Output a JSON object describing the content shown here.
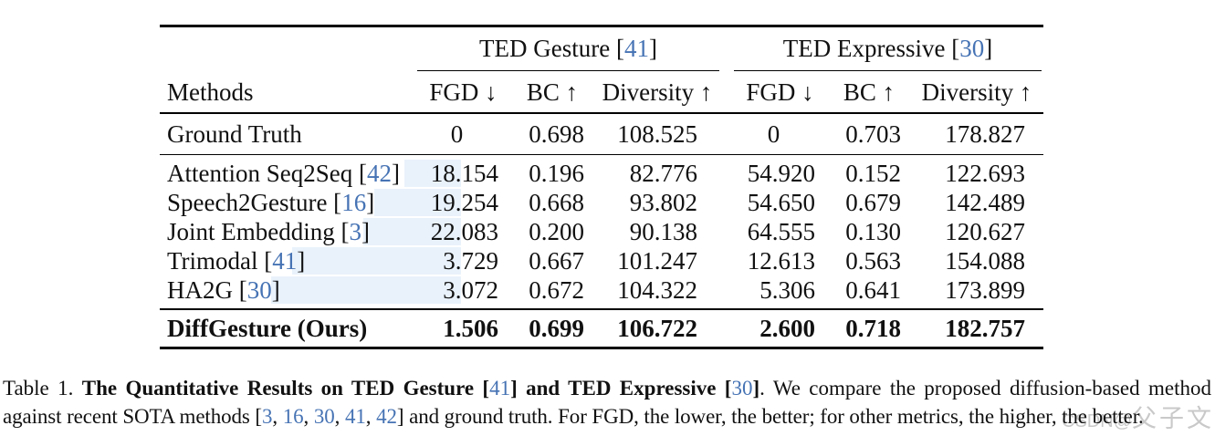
{
  "colors": {
    "citation_blue": "#4673b4",
    "row_highlight_blue": "#e9f2fb",
    "watermark_gray": "#c9c9c9"
  },
  "table": {
    "group_headers": [
      {
        "name": "ted-gesture",
        "segs": [
          {
            "t": "TED Gesture ["
          },
          {
            "t": "41",
            "s": "c"
          },
          {
            "t": "]"
          }
        ]
      },
      {
        "name": "ted-expressive",
        "segs": [
          {
            "t": "TED Expressive ["
          },
          {
            "t": "30",
            "s": "c"
          },
          {
            "t": "]"
          }
        ]
      }
    ],
    "methods_label": "Methods",
    "metric_headers": [
      "FGD ↓",
      "BC ↑",
      "Diversity ↑",
      "FGD ↓",
      "BC ↑",
      "Diversity ↑"
    ],
    "rows": [
      {
        "group": "gt",
        "segs": [
          {
            "t": "Ground Truth"
          }
        ],
        "values": [
          "0",
          "0.698",
          "108.525",
          "0",
          "0.703",
          "178.827"
        ]
      },
      {
        "group": "mid",
        "segs": [
          {
            "t": "Attention Seq2Seq ["
          },
          {
            "t": "42",
            "s": "c"
          },
          {
            "t": "]"
          }
        ],
        "values": [
          "18.154",
          "0.196",
          "82.776",
          "54.920",
          "0.152",
          "122.693"
        ]
      },
      {
        "group": "mid",
        "segs": [
          {
            "t": "Speech2Gesture ["
          },
          {
            "t": "16",
            "s": "c"
          },
          {
            "t": "]"
          }
        ],
        "values": [
          "19.254",
          "0.668",
          "93.802",
          "54.650",
          "0.679",
          "142.489"
        ]
      },
      {
        "group": "mid",
        "segs": [
          {
            "t": "Joint Embedding ["
          },
          {
            "t": "3",
            "s": "c"
          },
          {
            "t": "]"
          }
        ],
        "values": [
          "22.083",
          "0.200",
          "90.138",
          "64.555",
          "0.130",
          "120.627"
        ]
      },
      {
        "group": "mid",
        "segs": [
          {
            "t": "Trimodal ["
          },
          {
            "t": "41",
            "s": "c"
          },
          {
            "t": "]"
          }
        ],
        "values": [
          "3.729",
          "0.667",
          "101.247",
          "12.613",
          "0.563",
          "154.088"
        ]
      },
      {
        "group": "mid",
        "segs": [
          {
            "t": "HA2G ["
          },
          {
            "t": "30",
            "s": "c"
          },
          {
            "t": "]"
          }
        ],
        "values": [
          "3.072",
          "0.672",
          "104.322",
          "5.306",
          "0.641",
          "173.899"
        ]
      },
      {
        "group": "ours",
        "segs": [
          {
            "t": "DiffGesture (Ours)"
          }
        ],
        "values": [
          "1.506",
          "0.699",
          "106.722",
          "2.600",
          "0.718",
          "182.757"
        ]
      }
    ]
  },
  "caption": {
    "line1": [
      {
        "t": "Table 1. "
      },
      {
        "t": "The Quantitative Results on TED Gesture [",
        "s": "b"
      },
      {
        "t": "41",
        "s": "c"
      },
      {
        "t": "] and TED Expressive [",
        "s": "b"
      },
      {
        "t": "30",
        "s": "c"
      },
      {
        "t": "]",
        "s": "b"
      },
      {
        "t": ". We compare the proposed diffusion-based method"
      }
    ],
    "line2": [
      {
        "t": "against recent SOTA methods ["
      },
      {
        "t": "3",
        "s": "c"
      },
      {
        "t": ", "
      },
      {
        "t": "16",
        "s": "c"
      },
      {
        "t": ", "
      },
      {
        "t": "30",
        "s": "c"
      },
      {
        "t": ", "
      },
      {
        "t": "41",
        "s": "c"
      },
      {
        "t": ", "
      },
      {
        "t": "42",
        "s": "c"
      },
      {
        "t": "] and ground truth. For FGD, the lower, the better; for other metrics, the higher, the better."
      }
    ]
  },
  "watermark": {
    "prefix": "CSDN@",
    "name": "父子文"
  }
}
